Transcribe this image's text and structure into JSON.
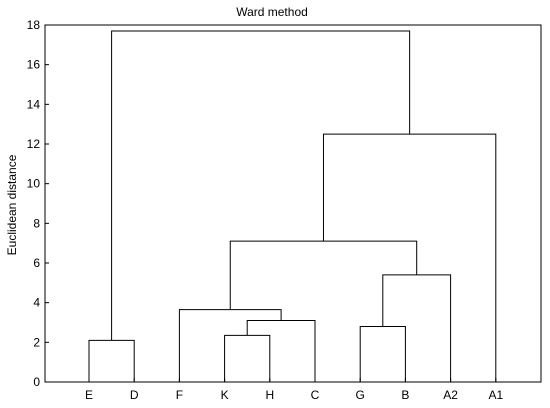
{
  "chart_data": {
    "type": "dendrogram",
    "title": "Ward method",
    "xlabel": "",
    "ylabel": "Euclidean distance",
    "ylim": [
      0,
      18
    ],
    "yticks": [
      0,
      2,
      4,
      6,
      8,
      10,
      12,
      14,
      16,
      18
    ],
    "grid": false,
    "leaves": [
      "E",
      "D",
      "F",
      "K",
      "H",
      "C",
      "G",
      "B",
      "A2",
      "A1"
    ],
    "merges": [
      {
        "left": "E",
        "right": "D",
        "height": 2.1
      },
      {
        "left": "K",
        "right": "H",
        "height": 2.35
      },
      {
        "left": "G",
        "right": "B",
        "height": 2.8
      },
      {
        "left": "K+H",
        "right": "C",
        "height": 3.1
      },
      {
        "left": "F",
        "right": "K+H+C",
        "height": 3.65
      },
      {
        "left": "G+B",
        "right": "A2",
        "height": 5.4
      },
      {
        "left": "F+K+H+C",
        "right": "G+B+A2",
        "height": 7.1
      },
      {
        "left": "F+K+H+C+G+B+A2",
        "right": "A1",
        "height": 12.5
      },
      {
        "left": "E+D",
        "right": "F+K+H+C+G+B+A2+A1",
        "height": 17.7
      }
    ]
  }
}
